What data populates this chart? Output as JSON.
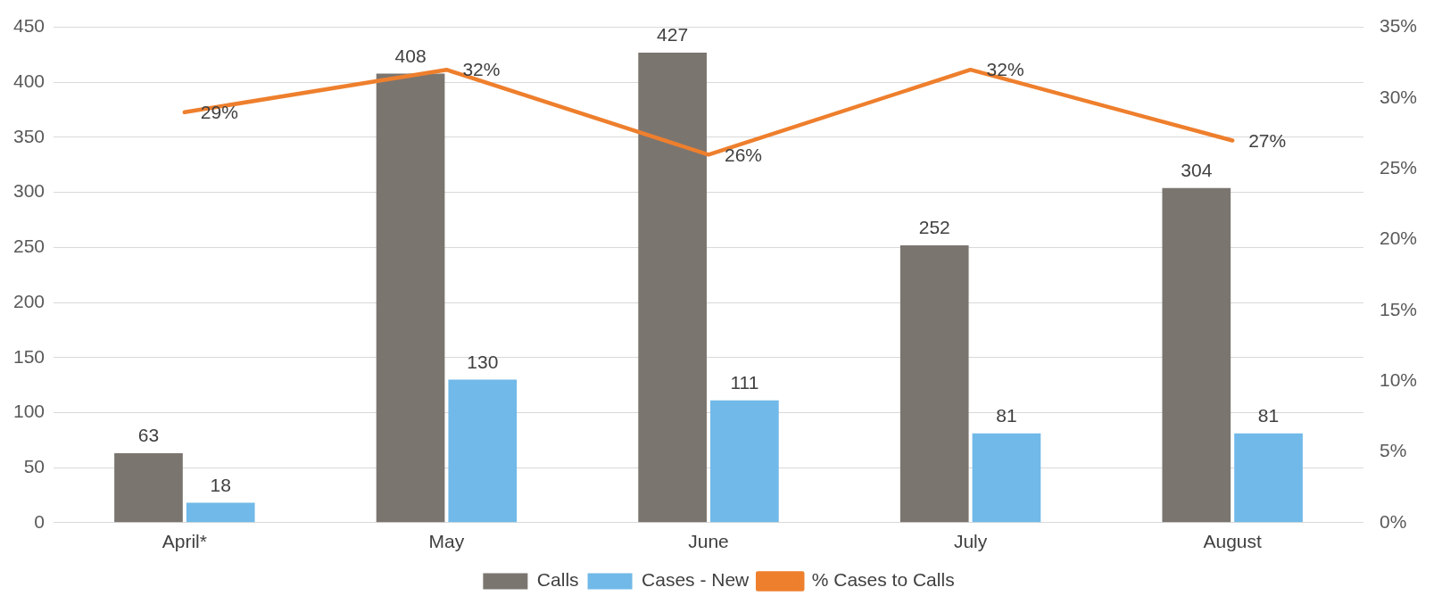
{
  "chart_data": {
    "type": "bar",
    "categories": [
      "April*",
      "May",
      "June",
      "July",
      "August"
    ],
    "series": [
      {
        "name": "Calls",
        "color": "#7b7570",
        "values": [
          63,
          408,
          427,
          252,
          304
        ]
      },
      {
        "name": "Cases - New",
        "color": "#71b9e8",
        "values": [
          18,
          130,
          111,
          81,
          81
        ]
      },
      {
        "name": "% Cases to Calls",
        "type": "line",
        "axis": "y2",
        "color": "#ee7f2d",
        "marker": "none",
        "values": [
          29,
          32,
          26,
          32,
          27
        ],
        "value_labels": [
          "29%",
          "32%",
          "26%",
          "32%",
          "27%"
        ]
      }
    ],
    "ylim": [
      0,
      450
    ],
    "yticks": [
      0,
      50,
      100,
      150,
      200,
      250,
      300,
      350,
      400,
      450
    ],
    "y2lim": [
      0,
      35
    ],
    "y2ticks": [
      {
        "value": 0,
        "label": "0%"
      },
      {
        "value": 5,
        "label": "5%"
      },
      {
        "value": 10,
        "label": "10%"
      },
      {
        "value": 15,
        "label": "15%"
      },
      {
        "value": 20,
        "label": "20%"
      },
      {
        "value": 25,
        "label": "25%"
      },
      {
        "value": 30,
        "label": "30%"
      },
      {
        "value": 35,
        "label": "35%"
      }
    ],
    "grid": "y",
    "legend": "bottom",
    "data_labels": true
  }
}
